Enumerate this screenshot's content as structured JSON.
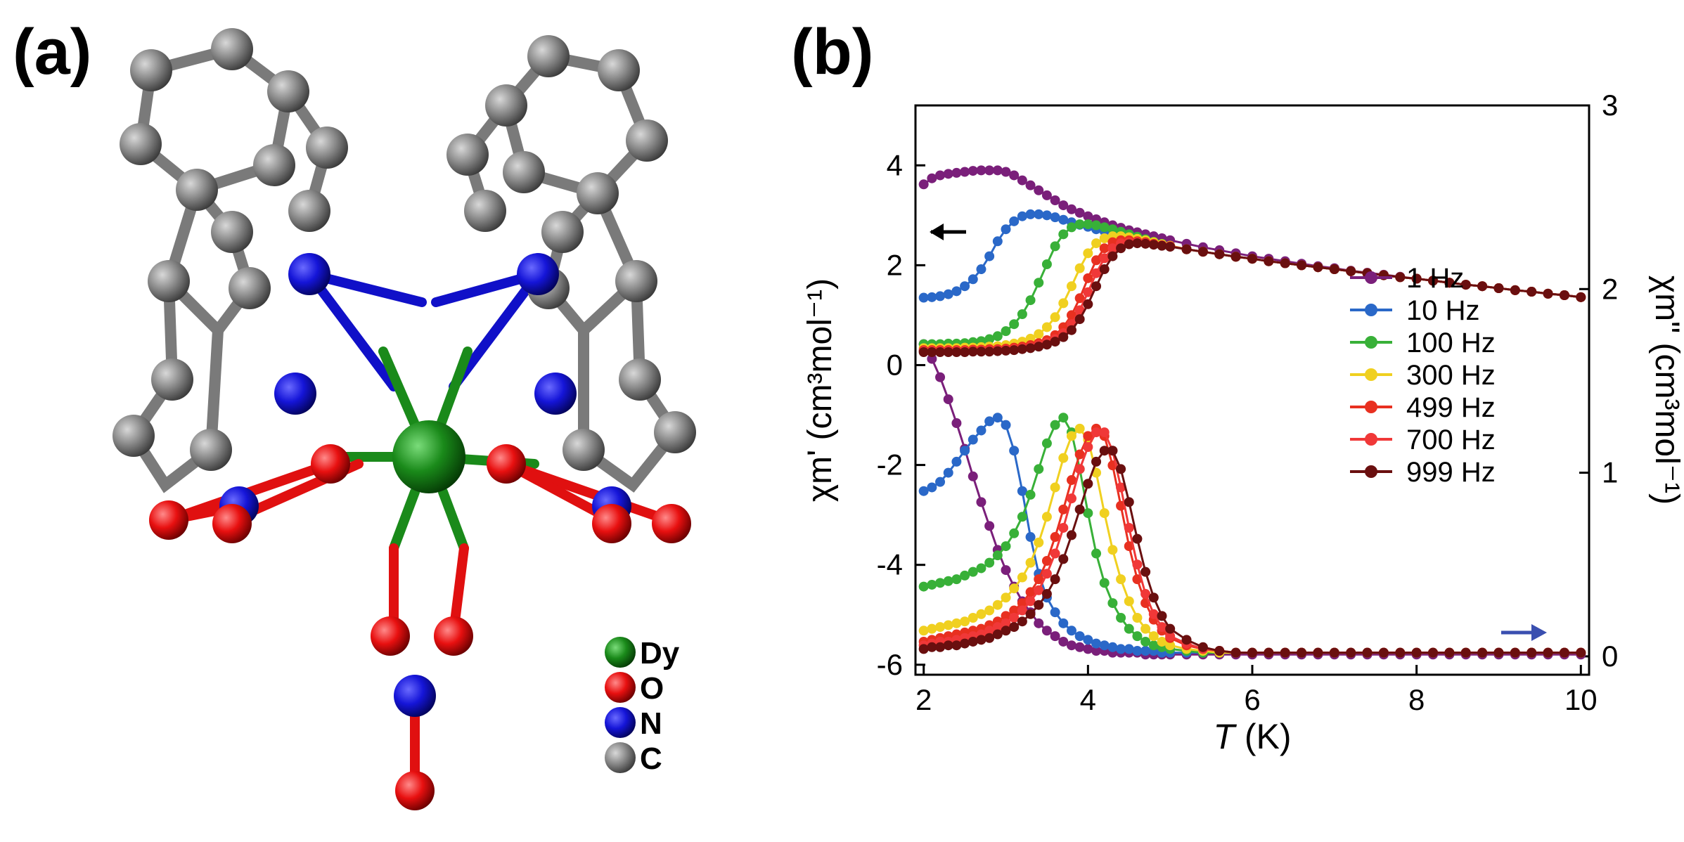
{
  "panels": {
    "a": "(a)",
    "b": "(b)"
  },
  "structure": {
    "legend": [
      {
        "symbol": "Dy",
        "color": "#1a8a1a"
      },
      {
        "symbol": "O",
        "color": "#e01010"
      },
      {
        "symbol": "N",
        "color": "#1010d0"
      },
      {
        "symbol": "C",
        "color": "#808080"
      }
    ]
  },
  "chart_data": {
    "type": "line",
    "xlabel_italic": "T",
    "xlabel_unit": "(K)",
    "ylabel_left": "χm' (cm³mol⁻¹)",
    "ylabel_right": "χm\" (cm³mol⁻¹)",
    "xlim": [
      1.9,
      10.1
    ],
    "ylim_left": [
      -6.2,
      5.2
    ],
    "ylim_right": [
      -0.1,
      3.0
    ],
    "x_ticks": [
      2,
      4,
      6,
      8,
      10
    ],
    "y_left_ticks": [
      -6,
      -4,
      -2,
      0,
      2,
      4
    ],
    "y_right_ticks": [
      0,
      1,
      2,
      3
    ],
    "x": [
      2.0,
      2.1,
      2.2,
      2.3,
      2.4,
      2.5,
      2.6,
      2.7,
      2.8,
      2.9,
      3.0,
      3.1,
      3.2,
      3.3,
      3.4,
      3.5,
      3.6,
      3.7,
      3.8,
      3.9,
      4.0,
      4.1,
      4.2,
      4.3,
      4.4,
      4.5,
      4.6,
      4.7,
      4.8,
      4.9,
      5.0,
      5.2,
      5.4,
      5.6,
      5.8,
      6.0,
      6.2,
      6.4,
      6.6,
      6.8,
      7.0,
      7.2,
      7.4,
      7.6,
      7.8,
      8.0,
      8.2,
      8.4,
      8.6,
      8.8,
      9.0,
      9.2,
      9.4,
      9.6,
      9.8,
      10.0
    ],
    "series": [
      {
        "name": "1 Hz",
        "color": "#7a1f7a",
        "in_phase": [
          3.62,
          3.74,
          3.8,
          3.83,
          3.85,
          3.87,
          3.89,
          3.9,
          3.9,
          3.9,
          3.87,
          3.8,
          3.7,
          3.6,
          3.5,
          3.4,
          3.3,
          3.2,
          3.12,
          3.05,
          2.98,
          2.92,
          2.86,
          2.8,
          2.75,
          2.7,
          2.66,
          2.62,
          2.58,
          2.54,
          2.5,
          2.43,
          2.36,
          2.3,
          2.24,
          2.18,
          2.13,
          2.08,
          2.03,
          1.98,
          1.94,
          1.89,
          1.85,
          1.81,
          1.77,
          1.73,
          1.69,
          1.65,
          1.61,
          1.58,
          1.54,
          1.5,
          1.47,
          1.43,
          1.4,
          1.36
        ],
        "out_phase": [
          1.7,
          1.62,
          1.52,
          1.4,
          1.27,
          1.13,
          0.98,
          0.84,
          0.71,
          0.58,
          0.47,
          0.38,
          0.3,
          0.24,
          0.18,
          0.14,
          0.11,
          0.08,
          0.06,
          0.05,
          0.04,
          0.03,
          0.03,
          0.02,
          0.02,
          0.02,
          0.02,
          0.01,
          0.01,
          0.01,
          0.01,
          0.01,
          0.01,
          0.01,
          0.01,
          0.01,
          0.01,
          0.01,
          0.01,
          0.01,
          0.01,
          0.01,
          0.01,
          0.01,
          0.01,
          0.01,
          0.01,
          0.01,
          0.01,
          0.01,
          0.01,
          0.01,
          0.01,
          0.01,
          0.01,
          0.01
        ]
      },
      {
        "name": "10 Hz",
        "color": "#2a68c8",
        "in_phase": [
          1.35,
          1.36,
          1.38,
          1.42,
          1.48,
          1.58,
          1.72,
          1.92,
          2.18,
          2.48,
          2.72,
          2.88,
          2.98,
          3.02,
          3.02,
          3.0,
          2.96,
          2.91,
          2.86,
          2.81,
          2.77,
          2.72,
          2.68,
          2.63,
          2.59,
          2.55,
          2.51,
          2.47,
          2.44,
          2.41,
          2.38,
          2.32,
          2.27,
          2.22,
          2.17,
          2.13,
          2.08,
          2.04,
          2.0,
          1.96,
          1.92,
          1.88,
          1.84,
          1.8,
          1.76,
          1.73,
          1.69,
          1.65,
          1.61,
          1.58,
          1.54,
          1.5,
          1.47,
          1.43,
          1.4,
          1.36
        ],
        "out_phase": [
          0.9,
          0.92,
          0.95,
          1.0,
          1.06,
          1.12,
          1.18,
          1.23,
          1.28,
          1.3,
          1.26,
          1.12,
          0.9,
          0.65,
          0.45,
          0.32,
          0.24,
          0.18,
          0.14,
          0.11,
          0.09,
          0.07,
          0.06,
          0.05,
          0.04,
          0.04,
          0.03,
          0.03,
          0.03,
          0.02,
          0.02,
          0.02,
          0.02,
          0.02,
          0.02,
          0.02,
          0.02,
          0.02,
          0.02,
          0.02,
          0.02,
          0.02,
          0.02,
          0.02,
          0.02,
          0.02,
          0.02,
          0.02,
          0.02,
          0.02,
          0.02,
          0.02,
          0.02,
          0.02,
          0.02,
          0.02
        ]
      },
      {
        "name": "100 Hz",
        "color": "#38b038",
        "in_phase": [
          0.42,
          0.42,
          0.42,
          0.43,
          0.43,
          0.44,
          0.46,
          0.48,
          0.52,
          0.58,
          0.68,
          0.82,
          1.02,
          1.3,
          1.65,
          2.02,
          2.38,
          2.62,
          2.76,
          2.82,
          2.82,
          2.8,
          2.76,
          2.72,
          2.67,
          2.62,
          2.57,
          2.52,
          2.47,
          2.43,
          2.39,
          2.32,
          2.27,
          2.22,
          2.17,
          2.13,
          2.08,
          2.04,
          2.0,
          1.96,
          1.92,
          1.88,
          1.84,
          1.8,
          1.76,
          1.73,
          1.69,
          1.65,
          1.61,
          1.58,
          1.54,
          1.5,
          1.47,
          1.43,
          1.4,
          1.36
        ],
        "out_phase": [
          0.38,
          0.39,
          0.4,
          0.41,
          0.42,
          0.44,
          0.46,
          0.48,
          0.51,
          0.55,
          0.6,
          0.67,
          0.76,
          0.88,
          1.02,
          1.16,
          1.26,
          1.3,
          1.22,
          1.02,
          0.78,
          0.56,
          0.4,
          0.29,
          0.21,
          0.15,
          0.11,
          0.08,
          0.06,
          0.05,
          0.04,
          0.03,
          0.02,
          0.02,
          0.02,
          0.02,
          0.02,
          0.02,
          0.02,
          0.02,
          0.02,
          0.02,
          0.02,
          0.02,
          0.02,
          0.02,
          0.02,
          0.02,
          0.02,
          0.02,
          0.02,
          0.02,
          0.02,
          0.02,
          0.02,
          0.02
        ]
      },
      {
        "name": "300 Hz",
        "color": "#f0d020",
        "in_phase": [
          0.34,
          0.34,
          0.34,
          0.34,
          0.34,
          0.35,
          0.35,
          0.36,
          0.37,
          0.38,
          0.4,
          0.43,
          0.47,
          0.53,
          0.62,
          0.76,
          0.96,
          1.24,
          1.58,
          1.94,
          2.24,
          2.44,
          2.54,
          2.58,
          2.58,
          2.56,
          2.53,
          2.5,
          2.46,
          2.42,
          2.39,
          2.32,
          2.27,
          2.22,
          2.17,
          2.13,
          2.08,
          2.04,
          2.0,
          1.96,
          1.92,
          1.88,
          1.84,
          1.8,
          1.76,
          1.73,
          1.69,
          1.65,
          1.61,
          1.58,
          1.54,
          1.5,
          1.47,
          1.43,
          1.4,
          1.36
        ],
        "out_phase": [
          0.14,
          0.15,
          0.16,
          0.17,
          0.18,
          0.19,
          0.21,
          0.23,
          0.25,
          0.28,
          0.32,
          0.37,
          0.43,
          0.51,
          0.62,
          0.76,
          0.92,
          1.08,
          1.2,
          1.24,
          1.18,
          1.0,
          0.78,
          0.58,
          0.42,
          0.3,
          0.21,
          0.15,
          0.11,
          0.08,
          0.06,
          0.04,
          0.03,
          0.02,
          0.02,
          0.02,
          0.02,
          0.02,
          0.02,
          0.02,
          0.02,
          0.02,
          0.02,
          0.02,
          0.02,
          0.02,
          0.02,
          0.02,
          0.02,
          0.02,
          0.02,
          0.02,
          0.02,
          0.02,
          0.02,
          0.02
        ]
      },
      {
        "name": "499 Hz",
        "color": "#e83020",
        "in_phase": [
          0.3,
          0.3,
          0.3,
          0.3,
          0.3,
          0.3,
          0.31,
          0.31,
          0.32,
          0.32,
          0.33,
          0.35,
          0.37,
          0.4,
          0.44,
          0.5,
          0.6,
          0.76,
          1.0,
          1.34,
          1.74,
          2.1,
          2.34,
          2.46,
          2.5,
          2.5,
          2.48,
          2.46,
          2.43,
          2.4,
          2.38,
          2.32,
          2.27,
          2.22,
          2.17,
          2.13,
          2.08,
          2.04,
          2.0,
          1.96,
          1.92,
          1.88,
          1.84,
          1.8,
          1.76,
          1.73,
          1.69,
          1.65,
          1.61,
          1.58,
          1.54,
          1.5,
          1.47,
          1.43,
          1.4,
          1.36
        ],
        "out_phase": [
          0.08,
          0.09,
          0.1,
          0.11,
          0.12,
          0.13,
          0.14,
          0.15,
          0.17,
          0.19,
          0.22,
          0.25,
          0.29,
          0.35,
          0.42,
          0.52,
          0.65,
          0.8,
          0.96,
          1.1,
          1.2,
          1.24,
          1.2,
          1.04,
          0.82,
          0.6,
          0.42,
          0.29,
          0.2,
          0.14,
          0.1,
          0.06,
          0.04,
          0.03,
          0.02,
          0.02,
          0.02,
          0.02,
          0.02,
          0.02,
          0.02,
          0.02,
          0.02,
          0.02,
          0.02,
          0.02,
          0.02,
          0.02,
          0.02,
          0.02,
          0.02,
          0.02,
          0.02,
          0.02,
          0.02,
          0.02
        ]
      },
      {
        "name": "700 Hz",
        "color": "#f03838",
        "in_phase": [
          0.28,
          0.28,
          0.28,
          0.28,
          0.28,
          0.28,
          0.29,
          0.29,
          0.29,
          0.3,
          0.31,
          0.32,
          0.34,
          0.36,
          0.4,
          0.45,
          0.52,
          0.64,
          0.82,
          1.1,
          1.46,
          1.84,
          2.14,
          2.34,
          2.44,
          2.46,
          2.46,
          2.44,
          2.42,
          2.4,
          2.38,
          2.32,
          2.27,
          2.22,
          2.17,
          2.13,
          2.08,
          2.04,
          2.0,
          1.96,
          1.92,
          1.88,
          1.84,
          1.8,
          1.76,
          1.73,
          1.69,
          1.65,
          1.61,
          1.58,
          1.54,
          1.5,
          1.47,
          1.43,
          1.4,
          1.36
        ],
        "out_phase": [
          0.06,
          0.07,
          0.08,
          0.08,
          0.09,
          0.1,
          0.11,
          0.12,
          0.14,
          0.16,
          0.18,
          0.21,
          0.25,
          0.3,
          0.36,
          0.45,
          0.56,
          0.7,
          0.86,
          1.02,
          1.14,
          1.22,
          1.22,
          1.12,
          0.92,
          0.7,
          0.5,
          0.34,
          0.23,
          0.16,
          0.11,
          0.07,
          0.04,
          0.03,
          0.02,
          0.02,
          0.02,
          0.02,
          0.02,
          0.02,
          0.02,
          0.02,
          0.02,
          0.02,
          0.02,
          0.02,
          0.02,
          0.02,
          0.02,
          0.02,
          0.02,
          0.02,
          0.02,
          0.02,
          0.02,
          0.02
        ]
      },
      {
        "name": "999 Hz",
        "color": "#6a0f0f",
        "in_phase": [
          0.26,
          0.26,
          0.26,
          0.26,
          0.26,
          0.26,
          0.27,
          0.27,
          0.27,
          0.28,
          0.29,
          0.3,
          0.32,
          0.34,
          0.37,
          0.41,
          0.47,
          0.56,
          0.7,
          0.92,
          1.22,
          1.58,
          1.92,
          2.18,
          2.34,
          2.42,
          2.44,
          2.43,
          2.41,
          2.39,
          2.37,
          2.32,
          2.27,
          2.22,
          2.17,
          2.13,
          2.08,
          2.04,
          2.0,
          1.96,
          1.92,
          1.88,
          1.84,
          1.8,
          1.76,
          1.73,
          1.69,
          1.65,
          1.61,
          1.58,
          1.54,
          1.5,
          1.47,
          1.43,
          1.4,
          1.36
        ],
        "out_phase": [
          0.04,
          0.05,
          0.05,
          0.06,
          0.06,
          0.07,
          0.08,
          0.09,
          0.1,
          0.12,
          0.14,
          0.16,
          0.19,
          0.23,
          0.28,
          0.34,
          0.42,
          0.53,
          0.66,
          0.8,
          0.94,
          1.06,
          1.12,
          1.12,
          1.02,
          0.84,
          0.64,
          0.46,
          0.32,
          0.22,
          0.15,
          0.09,
          0.05,
          0.03,
          0.02,
          0.02,
          0.02,
          0.02,
          0.02,
          0.02,
          0.02,
          0.02,
          0.02,
          0.02,
          0.02,
          0.02,
          0.02,
          0.02,
          0.02,
          0.02,
          0.02,
          0.02,
          0.02,
          0.02,
          0.02,
          0.02
        ]
      }
    ]
  }
}
